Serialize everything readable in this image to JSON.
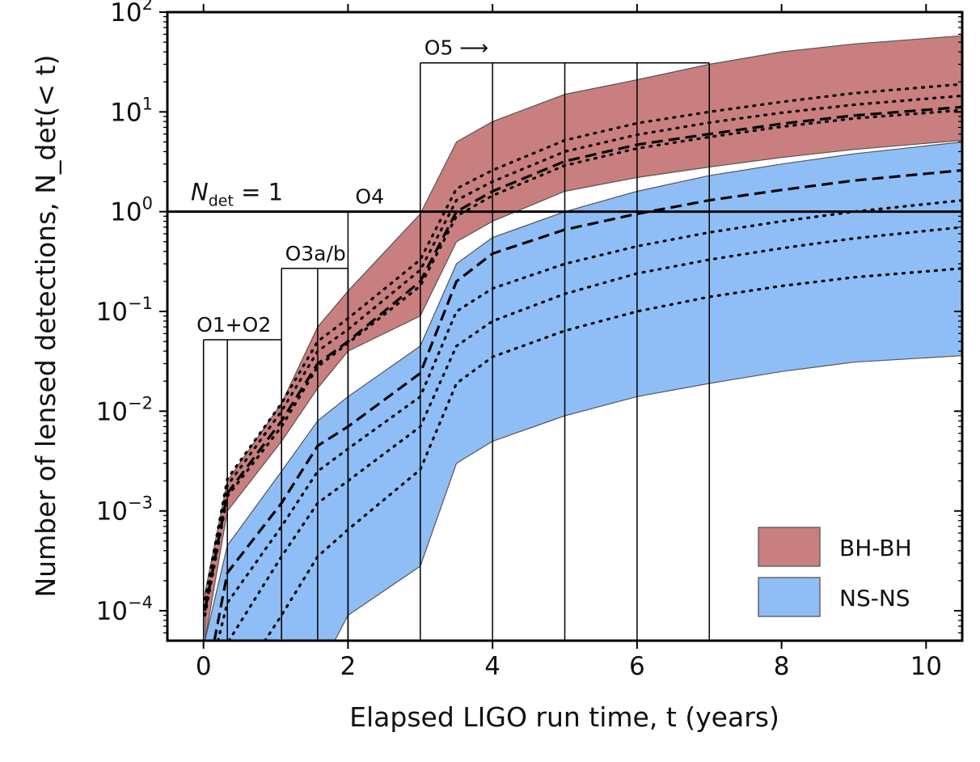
{
  "chart_data": {
    "type": "area",
    "xlabel": "Elapsed LIGO run time, t (years)",
    "ylabel": "Number of lensed detections, N_det(< t)",
    "xlim": [
      -0.5,
      10.5
    ],
    "ylim_log10": [
      -4.3,
      2.0
    ],
    "yscale": "log",
    "grid": false,
    "x_ticks": [
      0,
      2,
      4,
      6,
      8,
      10
    ],
    "x_tick_labels": [
      "0",
      "2",
      "4",
      "6",
      "8",
      "10"
    ],
    "y_ticks_log10": [
      -4,
      -3,
      -2,
      -1,
      0,
      1,
      2
    ],
    "y_tick_labels": [
      {
        "base": "10",
        "exp": "−4"
      },
      {
        "base": "10",
        "exp": "−3"
      },
      {
        "base": "10",
        "exp": "−2"
      },
      {
        "base": "10",
        "exp": "−1"
      },
      {
        "base": "10",
        "exp": "0"
      },
      {
        "base": "10",
        "exp": "1"
      },
      {
        "base": "10",
        "exp": "2"
      }
    ],
    "reference_line": {
      "label_main": "N",
      "label_sub": "det",
      "label_rest": " = 1",
      "y": 1
    },
    "legend": {
      "position": "bottom-right",
      "entries": [
        {
          "label": "BH-BH",
          "color": "#c97f7f"
        },
        {
          "label": "NS-NS",
          "color": "#8fbef7"
        }
      ]
    },
    "observing_runs": [
      {
        "label": "O1+O2",
        "x_start": 0,
        "x_end": 1.08,
        "boundaries": [
          0,
          0.33,
          1.08
        ],
        "top": 0.052,
        "label_x": 0.42
      },
      {
        "label": "O3a/b",
        "x_start": 1.08,
        "x_end": 2.0,
        "boundaries": [
          1.08,
          1.58,
          2.0
        ],
        "top": 0.27,
        "label_x": 1.55
      },
      {
        "label": "O4",
        "x_start": 2.0,
        "x_end": 3.0,
        "boundaries": [
          2.0
        ],
        "top": 1.0,
        "label_x": 2.3
      },
      {
        "label": "O5 ⟶",
        "x_start": 3.0,
        "x_end": 7.0,
        "boundaries": [
          3,
          4,
          5,
          6,
          7
        ],
        "top": 31,
        "label_x": 3.5
      }
    ],
    "series": [
      {
        "name": "BH-BH band upper",
        "x": [
          0.02,
          0.33,
          1.08,
          1.58,
          2.0,
          3.0,
          3.5,
          4,
          5,
          6,
          7,
          8,
          9,
          10.5
        ],
        "y": [
          0.00015,
          0.002,
          0.012,
          0.07,
          0.16,
          0.95,
          5,
          8,
          15,
          21,
          30,
          40,
          48,
          58
        ]
      },
      {
        "name": "BH-BH band lower",
        "x": [
          0.02,
          0.33,
          1.08,
          1.58,
          2.0,
          3.0,
          3.5,
          4,
          5,
          6,
          7,
          8,
          9,
          10.5
        ],
        "y": [
          5e-05,
          0.001,
          0.005,
          0.017,
          0.04,
          0.09,
          0.5,
          0.8,
          1.6,
          2.2,
          2.8,
          3.5,
          4.2,
          5.2
        ]
      },
      {
        "name": "NS-NS band upper",
        "x": [
          0.02,
          0.33,
          1.08,
          1.58,
          2.0,
          3.0,
          3.5,
          4,
          5,
          6,
          7,
          8,
          9,
          10.5
        ],
        "y": [
          5e-05,
          0.00045,
          0.0025,
          0.008,
          0.014,
          0.045,
          0.3,
          0.55,
          1.0,
          1.6,
          2.3,
          3.0,
          3.8,
          5.0
        ]
      },
      {
        "name": "NS-NS band lower",
        "x": [
          1.58,
          2.0,
          3.0,
          3.5,
          4,
          5,
          6,
          7,
          8,
          9,
          10.5
        ],
        "y": [
          5e-05,
          9e-05,
          0.00028,
          0.003,
          0.005,
          0.009,
          0.014,
          0.019,
          0.025,
          0.031,
          0.036
        ]
      },
      {
        "name": "BH-BH median (dashed)",
        "x": [
          0.02,
          0.33,
          1.08,
          1.58,
          2.0,
          3.0,
          3.5,
          4,
          5,
          6,
          7,
          8,
          9,
          10.5
        ],
        "y": [
          0.0001,
          0.0015,
          0.008,
          0.03,
          0.05,
          0.2,
          1.0,
          1.6,
          3.2,
          4.7,
          6.0,
          7.6,
          9.2,
          11.2
        ]
      },
      {
        "name": "BH-BH dotted 1",
        "x": [
          0.02,
          0.33,
          1.08,
          1.58,
          2.0,
          3.0,
          3.5,
          4,
          5,
          6,
          7,
          8,
          9,
          10.5
        ],
        "y": [
          0.00013,
          0.0021,
          0.012,
          0.05,
          0.085,
          0.33,
          1.7,
          2.6,
          5.2,
          7.7,
          10.0,
          12.6,
          15.4,
          19
        ]
      },
      {
        "name": "BH-BH dotted 2",
        "x": [
          0.02,
          0.33,
          1.08,
          1.58,
          2.0,
          3.0,
          3.5,
          4,
          5,
          6,
          7,
          8,
          9,
          10.5
        ],
        "y": [
          0.00011,
          0.0018,
          0.01,
          0.04,
          0.066,
          0.26,
          1.3,
          2.0,
          4.0,
          5.9,
          7.8,
          9.8,
          11.8,
          14.5
        ]
      },
      {
        "name": "BH-BH dotted 3",
        "x": [
          0.02,
          0.33,
          1.08,
          1.58,
          2.0,
          3.0,
          3.5,
          4,
          5,
          6,
          7,
          8,
          9,
          10.5
        ],
        "y": [
          9e-05,
          0.0014,
          0.007,
          0.028,
          0.048,
          0.18,
          0.9,
          1.45,
          2.9,
          4.3,
          5.6,
          7.1,
          8.6,
          10.4
        ]
      },
      {
        "name": "NS-NS median (dashed)",
        "x": [
          0.15,
          0.33,
          1.08,
          1.58,
          2.0,
          3.0,
          3.5,
          4,
          5,
          6,
          7,
          8,
          9,
          10.5
        ],
        "y": [
          5e-05,
          0.00024,
          0.0012,
          0.0045,
          0.007,
          0.024,
          0.2,
          0.38,
          0.66,
          0.95,
          1.3,
          1.65,
          2.05,
          2.6
        ]
      },
      {
        "name": "NS-NS dotted 1",
        "x": [
          0.2,
          0.33,
          1.08,
          1.58,
          2.0,
          3.0,
          3.5,
          4,
          5,
          6,
          7,
          8,
          9,
          10.5
        ],
        "y": [
          5e-05,
          0.00012,
          0.0007,
          0.0025,
          0.0042,
          0.014,
          0.1,
          0.17,
          0.3,
          0.45,
          0.62,
          0.8,
          1.0,
          1.3
        ]
      },
      {
        "name": "NS-NS dotted 2",
        "x": [
          0.35,
          1.08,
          1.58,
          2.0,
          3.0,
          3.5,
          4,
          5,
          6,
          7,
          8,
          9,
          10.5
        ],
        "y": [
          5e-05,
          0.00035,
          0.0012,
          0.002,
          0.007,
          0.045,
          0.08,
          0.15,
          0.24,
          0.33,
          0.43,
          0.54,
          0.7
        ]
      },
      {
        "name": "NS-NS dotted 3",
        "x": [
          0.85,
          1.08,
          1.58,
          2.0,
          3.0,
          3.5,
          4,
          5,
          6,
          7,
          8,
          9,
          10.5
        ],
        "y": [
          5e-05,
          9e-05,
          0.00035,
          0.00065,
          0.0026,
          0.019,
          0.035,
          0.064,
          0.1,
          0.14,
          0.18,
          0.22,
          0.27
        ]
      }
    ]
  }
}
